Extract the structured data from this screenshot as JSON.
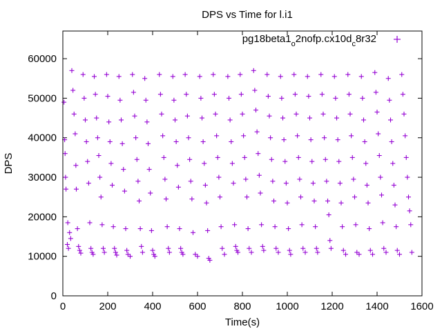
{
  "chart_data": {
    "type": "scatter",
    "title": "DPS vs Time for l.i1",
    "xlabel": "Time(s)",
    "ylabel": "DPS",
    "xlim": [
      0,
      1600
    ],
    "ylim": [
      0,
      67000
    ],
    "xticks": [
      0,
      200,
      400,
      600,
      800,
      1000,
      1200,
      1400,
      1600
    ],
    "yticks": [
      0,
      10000,
      20000,
      30000,
      40000,
      50000,
      60000
    ],
    "grid": false,
    "legend_position": "top-right",
    "marker": "+",
    "color": "#9400d3",
    "series": [
      {
        "name": "pg18beta1_o2nofp.cx10d_c8r32",
        "points": [
          [
            5,
            49000
          ],
          [
            8,
            39500
          ],
          [
            10,
            36000
          ],
          [
            12,
            30000
          ],
          [
            14,
            27000
          ],
          [
            20,
            13000
          ],
          [
            22,
            18500
          ],
          [
            25,
            12000
          ],
          [
            30,
            16000
          ],
          [
            35,
            14500
          ],
          [
            40,
            57000
          ],
          [
            45,
            52000
          ],
          [
            50,
            46000
          ],
          [
            55,
            41000
          ],
          [
            58,
            33000
          ],
          [
            60,
            27000
          ],
          [
            65,
            17000
          ],
          [
            70,
            12500
          ],
          [
            75,
            11500
          ],
          [
            80,
            10800
          ],
          [
            90,
            56000
          ],
          [
            95,
            50000
          ],
          [
            100,
            44500
          ],
          [
            105,
            39000
          ],
          [
            110,
            34000
          ],
          [
            115,
            28500
          ],
          [
            120,
            18500
          ],
          [
            125,
            12000
          ],
          [
            130,
            11000
          ],
          [
            135,
            10500
          ],
          [
            140,
            55500
          ],
          [
            145,
            51000
          ],
          [
            150,
            45000
          ],
          [
            155,
            40000
          ],
          [
            160,
            35500
          ],
          [
            165,
            30000
          ],
          [
            170,
            25000
          ],
          [
            175,
            18000
          ],
          [
            180,
            12000
          ],
          [
            185,
            11000
          ],
          [
            195,
            56000
          ],
          [
            200,
            50500
          ],
          [
            205,
            44000
          ],
          [
            210,
            39000
          ],
          [
            215,
            33500
          ],
          [
            220,
            28000
          ],
          [
            225,
            17500
          ],
          [
            230,
            12000
          ],
          [
            235,
            11000
          ],
          [
            240,
            10300
          ],
          [
            250,
            55500
          ],
          [
            255,
            49500
          ],
          [
            260,
            44500
          ],
          [
            265,
            38500
          ],
          [
            270,
            32000
          ],
          [
            275,
            26500
          ],
          [
            280,
            17000
          ],
          [
            285,
            11500
          ],
          [
            290,
            10500
          ],
          [
            300,
            10000
          ],
          [
            310,
            56000
          ],
          [
            315,
            51500
          ],
          [
            320,
            45500
          ],
          [
            325,
            40000
          ],
          [
            330,
            34500
          ],
          [
            335,
            29000
          ],
          [
            340,
            24000
          ],
          [
            345,
            17000
          ],
          [
            350,
            12500
          ],
          [
            355,
            11000
          ],
          [
            365,
            55000
          ],
          [
            370,
            49500
          ],
          [
            375,
            44000
          ],
          [
            380,
            38500
          ],
          [
            385,
            32000
          ],
          [
            390,
            26000
          ],
          [
            395,
            16500
          ],
          [
            400,
            11500
          ],
          [
            405,
            10500
          ],
          [
            410,
            10000
          ],
          [
            430,
            56000
          ],
          [
            435,
            51000
          ],
          [
            440,
            46000
          ],
          [
            445,
            40500
          ],
          [
            450,
            35000
          ],
          [
            455,
            29500
          ],
          [
            460,
            24500
          ],
          [
            465,
            17500
          ],
          [
            470,
            12000
          ],
          [
            475,
            11000
          ],
          [
            490,
            55500
          ],
          [
            495,
            49500
          ],
          [
            500,
            44500
          ],
          [
            505,
            39000
          ],
          [
            510,
            33000
          ],
          [
            515,
            27500
          ],
          [
            520,
            17000
          ],
          [
            525,
            12000
          ],
          [
            530,
            11000
          ],
          [
            535,
            10500
          ],
          [
            545,
            56000
          ],
          [
            550,
            51000
          ],
          [
            555,
            45500
          ],
          [
            560,
            40000
          ],
          [
            565,
            34500
          ],
          [
            570,
            29000
          ],
          [
            575,
            24500
          ],
          [
            580,
            16000
          ],
          [
            590,
            10500
          ],
          [
            600,
            10000
          ],
          [
            610,
            55500
          ],
          [
            615,
            50000
          ],
          [
            620,
            45000
          ],
          [
            625,
            39000
          ],
          [
            630,
            33500
          ],
          [
            635,
            28000
          ],
          [
            640,
            23500
          ],
          [
            645,
            16500
          ],
          [
            650,
            9500
          ],
          [
            655,
            9000
          ],
          [
            670,
            56000
          ],
          [
            675,
            51000
          ],
          [
            680,
            46000
          ],
          [
            685,
            40500
          ],
          [
            690,
            35000
          ],
          [
            695,
            30000
          ],
          [
            700,
            25000
          ],
          [
            705,
            17500
          ],
          [
            710,
            12000
          ],
          [
            720,
            10500
          ],
          [
            735,
            55500
          ],
          [
            740,
            50000
          ],
          [
            745,
            44500
          ],
          [
            750,
            39000
          ],
          [
            755,
            33500
          ],
          [
            760,
            28500
          ],
          [
            765,
            18000
          ],
          [
            770,
            12500
          ],
          [
            775,
            11500
          ],
          [
            780,
            11000
          ],
          [
            790,
            56000
          ],
          [
            795,
            51000
          ],
          [
            800,
            46000
          ],
          [
            805,
            40500
          ],
          [
            810,
            35000
          ],
          [
            815,
            29500
          ],
          [
            820,
            25000
          ],
          [
            825,
            17000
          ],
          [
            830,
            12000
          ],
          [
            840,
            11000
          ],
          [
            850,
            57000
          ],
          [
            855,
            52000
          ],
          [
            860,
            47000
          ],
          [
            865,
            41500
          ],
          [
            870,
            36000
          ],
          [
            875,
            30500
          ],
          [
            880,
            26000
          ],
          [
            885,
            18000
          ],
          [
            890,
            12500
          ],
          [
            895,
            11500
          ],
          [
            910,
            56000
          ],
          [
            915,
            50500
          ],
          [
            920,
            45500
          ],
          [
            925,
            40000
          ],
          [
            930,
            34500
          ],
          [
            935,
            29000
          ],
          [
            940,
            24000
          ],
          [
            945,
            17500
          ],
          [
            950,
            12000
          ],
          [
            960,
            11000
          ],
          [
            970,
            55500
          ],
          [
            975,
            50000
          ],
          [
            980,
            45000
          ],
          [
            985,
            39500
          ],
          [
            990,
            34000
          ],
          [
            995,
            28500
          ],
          [
            1000,
            23500
          ],
          [
            1005,
            17000
          ],
          [
            1010,
            11500
          ],
          [
            1015,
            10500
          ],
          [
            1030,
            56000
          ],
          [
            1035,
            51000
          ],
          [
            1040,
            46000
          ],
          [
            1045,
            40500
          ],
          [
            1050,
            35000
          ],
          [
            1055,
            29500
          ],
          [
            1060,
            25000
          ],
          [
            1065,
            18000
          ],
          [
            1070,
            12000
          ],
          [
            1080,
            11000
          ],
          [
            1090,
            55500
          ],
          [
            1095,
            50500
          ],
          [
            1100,
            45000
          ],
          [
            1105,
            39500
          ],
          [
            1110,
            34000
          ],
          [
            1115,
            28500
          ],
          [
            1120,
            24000
          ],
          [
            1125,
            17500
          ],
          [
            1130,
            12000
          ],
          [
            1135,
            11000
          ],
          [
            1150,
            56000
          ],
          [
            1155,
            51000
          ],
          [
            1160,
            46000
          ],
          [
            1165,
            40000
          ],
          [
            1170,
            34500
          ],
          [
            1175,
            29000
          ],
          [
            1180,
            24000
          ],
          [
            1185,
            20500
          ],
          [
            1190,
            14000
          ],
          [
            1195,
            12000
          ],
          [
            1210,
            55500
          ],
          [
            1215,
            50000
          ],
          [
            1220,
            45000
          ],
          [
            1225,
            39500
          ],
          [
            1230,
            34000
          ],
          [
            1235,
            28500
          ],
          [
            1240,
            23500
          ],
          [
            1245,
            17500
          ],
          [
            1250,
            11500
          ],
          [
            1260,
            10500
          ],
          [
            1270,
            56000
          ],
          [
            1275,
            51000
          ],
          [
            1280,
            46000
          ],
          [
            1285,
            40500
          ],
          [
            1290,
            35000
          ],
          [
            1295,
            29500
          ],
          [
            1300,
            25000
          ],
          [
            1305,
            18000
          ],
          [
            1310,
            11000
          ],
          [
            1320,
            10500
          ],
          [
            1330,
            55500
          ],
          [
            1335,
            50000
          ],
          [
            1340,
            44500
          ],
          [
            1345,
            39000
          ],
          [
            1350,
            33500
          ],
          [
            1355,
            28000
          ],
          [
            1360,
            23500
          ],
          [
            1365,
            17000
          ],
          [
            1370,
            11500
          ],
          [
            1380,
            10500
          ],
          [
            1390,
            56500
          ],
          [
            1395,
            51500
          ],
          [
            1400,
            46500
          ],
          [
            1405,
            41000
          ],
          [
            1410,
            35500
          ],
          [
            1415,
            30000
          ],
          [
            1420,
            25500
          ],
          [
            1425,
            18500
          ],
          [
            1430,
            12000
          ],
          [
            1440,
            11000
          ],
          [
            1450,
            55000
          ],
          [
            1455,
            49500
          ],
          [
            1460,
            44500
          ],
          [
            1465,
            39000
          ],
          [
            1470,
            33500
          ],
          [
            1475,
            28000
          ],
          [
            1480,
            23000
          ],
          [
            1485,
            17500
          ],
          [
            1490,
            11500
          ],
          [
            1500,
            10500
          ],
          [
            1510,
            56000
          ],
          [
            1515,
            51000
          ],
          [
            1520,
            46000
          ],
          [
            1525,
            40500
          ],
          [
            1530,
            35000
          ],
          [
            1535,
            30000
          ],
          [
            1540,
            25000
          ],
          [
            1545,
            21500
          ],
          [
            1550,
            18000
          ],
          [
            1555,
            11000
          ]
        ]
      }
    ]
  }
}
